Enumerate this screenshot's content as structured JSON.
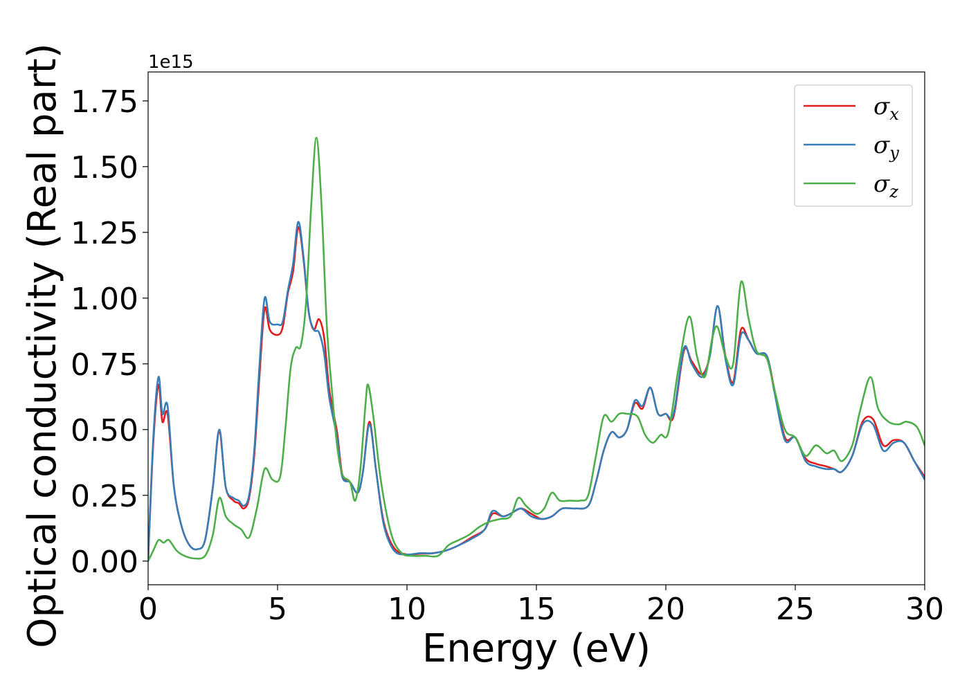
{
  "chart_data": {
    "type": "line",
    "xlabel": "Energy (eV)",
    "ylabel": "Optical conductivity (Real part)",
    "y_offset_label": "1e15",
    "y_multiplier": 1000000000000000.0,
    "xlim": [
      0,
      30
    ],
    "ylim": [
      -0.09,
      1.86
    ],
    "xticks": [
      0,
      5,
      10,
      15,
      20,
      25,
      30
    ],
    "xtick_labels": [
      "0",
      "5",
      "10",
      "15",
      "20",
      "25",
      "30"
    ],
    "yticks": [
      0.0,
      0.25,
      0.5,
      0.75,
      1.0,
      1.25,
      1.5,
      1.75
    ],
    "ytick_labels": [
      "0.00",
      "0.25",
      "0.50",
      "0.75",
      "1.00",
      "1.25",
      "1.50",
      "1.75"
    ],
    "grid": false,
    "legend_position": "top-right",
    "series": [
      {
        "name": "σx",
        "legend_symbol": "σ",
        "legend_subscript": "x",
        "color": "#e41a1c",
        "points": [
          [
            0,
            0.0
          ],
          [
            0.2,
            0.45
          ],
          [
            0.4,
            0.67
          ],
          [
            0.55,
            0.53
          ],
          [
            0.75,
            0.56
          ],
          [
            1.0,
            0.28
          ],
          [
            1.3,
            0.13
          ],
          [
            1.6,
            0.06
          ],
          [
            1.9,
            0.045
          ],
          [
            2.2,
            0.08
          ],
          [
            2.5,
            0.28
          ],
          [
            2.75,
            0.49
          ],
          [
            3.0,
            0.28
          ],
          [
            3.3,
            0.23
          ],
          [
            3.5,
            0.22
          ],
          [
            3.7,
            0.2
          ],
          [
            3.9,
            0.24
          ],
          [
            4.1,
            0.4
          ],
          [
            4.3,
            0.7
          ],
          [
            4.5,
            0.96
          ],
          [
            4.7,
            0.88
          ],
          [
            5.0,
            0.86
          ],
          [
            5.2,
            0.89
          ],
          [
            5.4,
            1.02
          ],
          [
            5.6,
            1.1
          ],
          [
            5.8,
            1.27
          ],
          [
            6.0,
            1.15
          ],
          [
            6.2,
            0.95
          ],
          [
            6.4,
            0.88
          ],
          [
            6.6,
            0.92
          ],
          [
            6.8,
            0.85
          ],
          [
            7.0,
            0.65
          ],
          [
            7.3,
            0.49
          ],
          [
            7.5,
            0.33
          ],
          [
            7.8,
            0.3
          ],
          [
            8.1,
            0.26
          ],
          [
            8.3,
            0.34
          ],
          [
            8.55,
            0.53
          ],
          [
            8.8,
            0.35
          ],
          [
            9.1,
            0.15
          ],
          [
            9.5,
            0.05
          ],
          [
            10.0,
            0.025
          ],
          [
            10.5,
            0.028
          ],
          [
            11.0,
            0.03
          ],
          [
            11.5,
            0.04
          ],
          [
            12.0,
            0.06
          ],
          [
            12.5,
            0.09
          ],
          [
            13.0,
            0.12
          ],
          [
            13.3,
            0.18
          ],
          [
            13.7,
            0.17
          ],
          [
            14.0,
            0.18
          ],
          [
            14.4,
            0.2
          ],
          [
            14.8,
            0.18
          ],
          [
            15.2,
            0.16
          ],
          [
            15.6,
            0.17
          ],
          [
            16.0,
            0.2
          ],
          [
            16.5,
            0.2
          ],
          [
            17.0,
            0.21
          ],
          [
            17.3,
            0.3
          ],
          [
            17.6,
            0.42
          ],
          [
            17.9,
            0.49
          ],
          [
            18.2,
            0.47
          ],
          [
            18.5,
            0.5
          ],
          [
            18.8,
            0.6
          ],
          [
            19.1,
            0.58
          ],
          [
            19.4,
            0.66
          ],
          [
            19.7,
            0.56
          ],
          [
            20.0,
            0.56
          ],
          [
            20.3,
            0.55
          ],
          [
            20.7,
            0.8
          ],
          [
            21.0,
            0.76
          ],
          [
            21.4,
            0.71
          ],
          [
            21.7,
            0.78
          ],
          [
            22.0,
            0.97
          ],
          [
            22.3,
            0.78
          ],
          [
            22.6,
            0.68
          ],
          [
            22.9,
            0.88
          ],
          [
            23.2,
            0.84
          ],
          [
            23.5,
            0.79
          ],
          [
            23.9,
            0.78
          ],
          [
            24.2,
            0.65
          ],
          [
            24.6,
            0.47
          ],
          [
            25.0,
            0.47
          ],
          [
            25.4,
            0.39
          ],
          [
            25.8,
            0.37
          ],
          [
            26.2,
            0.36
          ],
          [
            26.5,
            0.35
          ],
          [
            26.8,
            0.34
          ],
          [
            27.2,
            0.4
          ],
          [
            27.6,
            0.53
          ],
          [
            28.0,
            0.54
          ],
          [
            28.4,
            0.44
          ],
          [
            28.8,
            0.46
          ],
          [
            29.2,
            0.45
          ],
          [
            29.6,
            0.38
          ],
          [
            30.0,
            0.32
          ]
        ]
      },
      {
        "name": "σy",
        "legend_symbol": "σ",
        "legend_subscript": "y",
        "color": "#377eb8",
        "points": [
          [
            0,
            0.0
          ],
          [
            0.2,
            0.47
          ],
          [
            0.4,
            0.7
          ],
          [
            0.55,
            0.56
          ],
          [
            0.75,
            0.59
          ],
          [
            1.0,
            0.28
          ],
          [
            1.3,
            0.13
          ],
          [
            1.6,
            0.06
          ],
          [
            1.9,
            0.045
          ],
          [
            2.2,
            0.08
          ],
          [
            2.5,
            0.28
          ],
          [
            2.75,
            0.5
          ],
          [
            3.0,
            0.28
          ],
          [
            3.3,
            0.24
          ],
          [
            3.5,
            0.23
          ],
          [
            3.7,
            0.21
          ],
          [
            3.9,
            0.25
          ],
          [
            4.1,
            0.42
          ],
          [
            4.3,
            0.74
          ],
          [
            4.5,
            1.0
          ],
          [
            4.7,
            0.91
          ],
          [
            5.0,
            0.9
          ],
          [
            5.2,
            0.91
          ],
          [
            5.4,
            1.03
          ],
          [
            5.6,
            1.13
          ],
          [
            5.8,
            1.29
          ],
          [
            6.0,
            1.16
          ],
          [
            6.2,
            0.95
          ],
          [
            6.4,
            0.88
          ],
          [
            6.6,
            0.87
          ],
          [
            6.8,
            0.79
          ],
          [
            7.0,
            0.62
          ],
          [
            7.3,
            0.47
          ],
          [
            7.5,
            0.32
          ],
          [
            7.8,
            0.3
          ],
          [
            8.1,
            0.26
          ],
          [
            8.3,
            0.34
          ],
          [
            8.55,
            0.52
          ],
          [
            8.8,
            0.35
          ],
          [
            9.1,
            0.14
          ],
          [
            9.5,
            0.04
          ],
          [
            10.0,
            0.025
          ],
          [
            10.5,
            0.03
          ],
          [
            11.0,
            0.03
          ],
          [
            11.5,
            0.04
          ],
          [
            12.0,
            0.06
          ],
          [
            12.5,
            0.085
          ],
          [
            13.0,
            0.12
          ],
          [
            13.3,
            0.19
          ],
          [
            13.7,
            0.17
          ],
          [
            14.0,
            0.18
          ],
          [
            14.4,
            0.2
          ],
          [
            14.8,
            0.17
          ],
          [
            15.2,
            0.16
          ],
          [
            15.6,
            0.17
          ],
          [
            16.0,
            0.2
          ],
          [
            16.5,
            0.2
          ],
          [
            17.0,
            0.21
          ],
          [
            17.3,
            0.3
          ],
          [
            17.6,
            0.42
          ],
          [
            17.9,
            0.49
          ],
          [
            18.2,
            0.47
          ],
          [
            18.5,
            0.5
          ],
          [
            18.8,
            0.61
          ],
          [
            19.1,
            0.59
          ],
          [
            19.4,
            0.66
          ],
          [
            19.7,
            0.56
          ],
          [
            20.0,
            0.56
          ],
          [
            20.3,
            0.56
          ],
          [
            20.7,
            0.81
          ],
          [
            21.0,
            0.75
          ],
          [
            21.4,
            0.7
          ],
          [
            21.7,
            0.78
          ],
          [
            22.0,
            0.97
          ],
          [
            22.3,
            0.77
          ],
          [
            22.6,
            0.67
          ],
          [
            22.9,
            0.86
          ],
          [
            23.2,
            0.84
          ],
          [
            23.5,
            0.79
          ],
          [
            23.9,
            0.78
          ],
          [
            24.2,
            0.64
          ],
          [
            24.6,
            0.46
          ],
          [
            25.0,
            0.47
          ],
          [
            25.4,
            0.38
          ],
          [
            25.8,
            0.36
          ],
          [
            26.2,
            0.35
          ],
          [
            26.5,
            0.35
          ],
          [
            26.8,
            0.34
          ],
          [
            27.2,
            0.4
          ],
          [
            27.6,
            0.52
          ],
          [
            28.0,
            0.52
          ],
          [
            28.4,
            0.42
          ],
          [
            28.8,
            0.45
          ],
          [
            29.2,
            0.45
          ],
          [
            29.6,
            0.38
          ],
          [
            30.0,
            0.31
          ]
        ]
      },
      {
        "name": "σz",
        "legend_symbol": "σ",
        "legend_subscript": "z",
        "color": "#4daf4a",
        "points": [
          [
            0,
            0.0
          ],
          [
            0.2,
            0.04
          ],
          [
            0.4,
            0.08
          ],
          [
            0.6,
            0.07
          ],
          [
            0.8,
            0.08
          ],
          [
            1.1,
            0.04
          ],
          [
            1.4,
            0.02
          ],
          [
            1.8,
            0.01
          ],
          [
            2.2,
            0.02
          ],
          [
            2.5,
            0.1
          ],
          [
            2.75,
            0.24
          ],
          [
            3.0,
            0.17
          ],
          [
            3.3,
            0.14
          ],
          [
            3.6,
            0.12
          ],
          [
            3.9,
            0.09
          ],
          [
            4.2,
            0.2
          ],
          [
            4.5,
            0.35
          ],
          [
            4.8,
            0.31
          ],
          [
            5.1,
            0.32
          ],
          [
            5.3,
            0.5
          ],
          [
            5.5,
            0.73
          ],
          [
            5.7,
            0.81
          ],
          [
            5.9,
            0.82
          ],
          [
            6.1,
            0.98
          ],
          [
            6.3,
            1.35
          ],
          [
            6.5,
            1.61
          ],
          [
            6.7,
            1.35
          ],
          [
            6.9,
            0.9
          ],
          [
            7.1,
            0.65
          ],
          [
            7.3,
            0.44
          ],
          [
            7.5,
            0.33
          ],
          [
            7.8,
            0.3
          ],
          [
            8.0,
            0.23
          ],
          [
            8.2,
            0.35
          ],
          [
            8.4,
            0.6
          ],
          [
            8.5,
            0.67
          ],
          [
            8.7,
            0.55
          ],
          [
            9.0,
            0.3
          ],
          [
            9.4,
            0.1
          ],
          [
            9.8,
            0.03
          ],
          [
            10.2,
            0.02
          ],
          [
            10.7,
            0.02
          ],
          [
            11.2,
            0.02
          ],
          [
            11.6,
            0.06
          ],
          [
            12.0,
            0.08
          ],
          [
            12.4,
            0.1
          ],
          [
            12.8,
            0.13
          ],
          [
            13.2,
            0.15
          ],
          [
            13.6,
            0.16
          ],
          [
            14.0,
            0.17
          ],
          [
            14.3,
            0.24
          ],
          [
            14.6,
            0.21
          ],
          [
            15.0,
            0.18
          ],
          [
            15.3,
            0.2
          ],
          [
            15.6,
            0.26
          ],
          [
            15.9,
            0.23
          ],
          [
            16.3,
            0.23
          ],
          [
            16.7,
            0.23
          ],
          [
            17.0,
            0.25
          ],
          [
            17.3,
            0.4
          ],
          [
            17.6,
            0.55
          ],
          [
            17.9,
            0.53
          ],
          [
            18.2,
            0.56
          ],
          [
            18.5,
            0.56
          ],
          [
            18.9,
            0.55
          ],
          [
            19.2,
            0.48
          ],
          [
            19.5,
            0.45
          ],
          [
            19.8,
            0.48
          ],
          [
            20.1,
            0.49
          ],
          [
            20.5,
            0.74
          ],
          [
            20.9,
            0.93
          ],
          [
            21.2,
            0.78
          ],
          [
            21.5,
            0.7
          ],
          [
            21.8,
            0.85
          ],
          [
            22.0,
            0.89
          ],
          [
            22.3,
            0.78
          ],
          [
            22.6,
            0.75
          ],
          [
            22.9,
            1.06
          ],
          [
            23.2,
            0.92
          ],
          [
            23.5,
            0.8
          ],
          [
            23.9,
            0.77
          ],
          [
            24.2,
            0.65
          ],
          [
            24.6,
            0.5
          ],
          [
            25.0,
            0.47
          ],
          [
            25.4,
            0.4
          ],
          [
            25.8,
            0.44
          ],
          [
            26.2,
            0.41
          ],
          [
            26.5,
            0.42
          ],
          [
            26.8,
            0.38
          ],
          [
            27.2,
            0.44
          ],
          [
            27.5,
            0.57
          ],
          [
            27.9,
            0.7
          ],
          [
            28.2,
            0.58
          ],
          [
            28.6,
            0.53
          ],
          [
            29.0,
            0.52
          ],
          [
            29.3,
            0.53
          ],
          [
            29.7,
            0.51
          ],
          [
            30.0,
            0.44
          ]
        ]
      }
    ]
  }
}
